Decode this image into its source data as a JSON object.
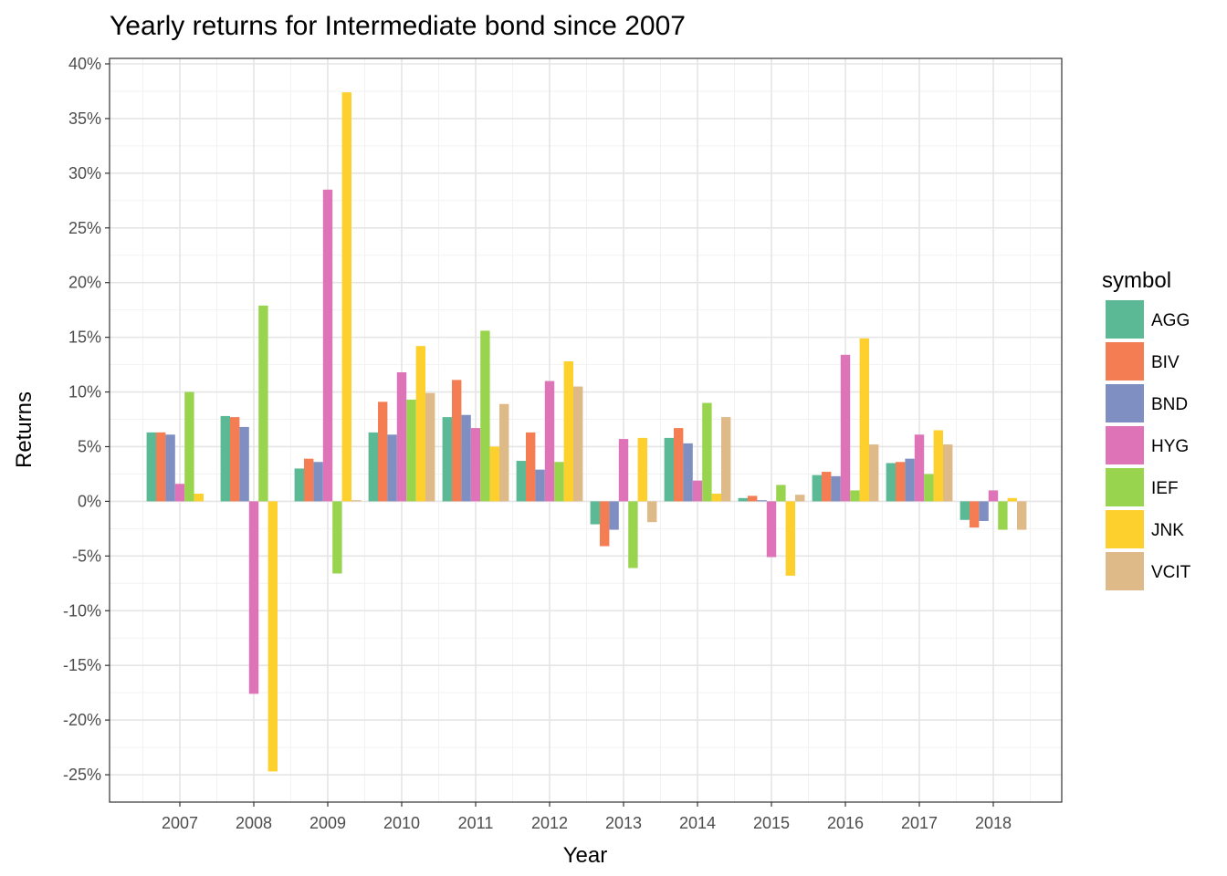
{
  "chart_data": {
    "type": "bar",
    "title": "Yearly returns for Intermediate bond since 2007",
    "xlabel": "Year",
    "ylabel": "Returns",
    "ylim": [
      -27.5,
      40.5
    ],
    "yticks": [
      -25,
      -20,
      -15,
      -10,
      -5,
      0,
      5,
      10,
      15,
      20,
      25,
      30,
      35,
      40
    ],
    "ytick_labels": [
      "-25%",
      "-20%",
      "-15%",
      "-10%",
      "-5%",
      "0%",
      "5%",
      "10%",
      "15%",
      "20%",
      "25%",
      "30%",
      "35%",
      "40%"
    ],
    "grid": true,
    "legend_title": "symbol",
    "legend_position": "right",
    "categories": [
      "2007",
      "2008",
      "2009",
      "2010",
      "2011",
      "2012",
      "2013",
      "2014",
      "2015",
      "2016",
      "2017",
      "2018"
    ],
    "series": [
      {
        "name": "AGG",
        "color": "#5BBA95",
        "values": [
          6.3,
          7.8,
          3.0,
          6.3,
          7.7,
          3.7,
          -2.1,
          5.8,
          0.3,
          2.4,
          3.5,
          -1.7
        ]
      },
      {
        "name": "BIV",
        "color": "#F57D53",
        "values": [
          6.3,
          7.7,
          3.9,
          9.1,
          11.1,
          6.3,
          -4.1,
          6.7,
          0.5,
          2.7,
          3.6,
          -2.4
        ]
      },
      {
        "name": "BND",
        "color": "#7F8FC2",
        "values": [
          6.1,
          6.8,
          3.6,
          6.1,
          7.9,
          2.9,
          -2.6,
          5.3,
          0.1,
          2.3,
          3.9,
          -1.8
        ]
      },
      {
        "name": "HYG",
        "color": "#DE73B8",
        "values": [
          1.6,
          -17.6,
          28.5,
          11.8,
          6.7,
          11.0,
          5.7,
          1.9,
          -5.1,
          13.4,
          6.1,
          1.0
        ]
      },
      {
        "name": "IEF",
        "color": "#99D44E",
        "values": [
          10.0,
          17.9,
          -6.6,
          9.3,
          15.6,
          3.6,
          -6.1,
          9.0,
          1.5,
          1.0,
          2.5,
          -2.6
        ]
      },
      {
        "name": "JNK",
        "color": "#FDD02E",
        "values": [
          0.7,
          -24.7,
          37.4,
          14.2,
          5.0,
          12.8,
          5.8,
          0.7,
          -6.8,
          14.9,
          6.5,
          0.3
        ]
      },
      {
        "name": "VCIT",
        "color": "#DDBA87",
        "values": [
          0.0,
          0.0,
          0.1,
          9.9,
          8.9,
          10.5,
          -1.9,
          7.7,
          0.6,
          5.2,
          5.2,
          -2.6
        ]
      }
    ]
  }
}
